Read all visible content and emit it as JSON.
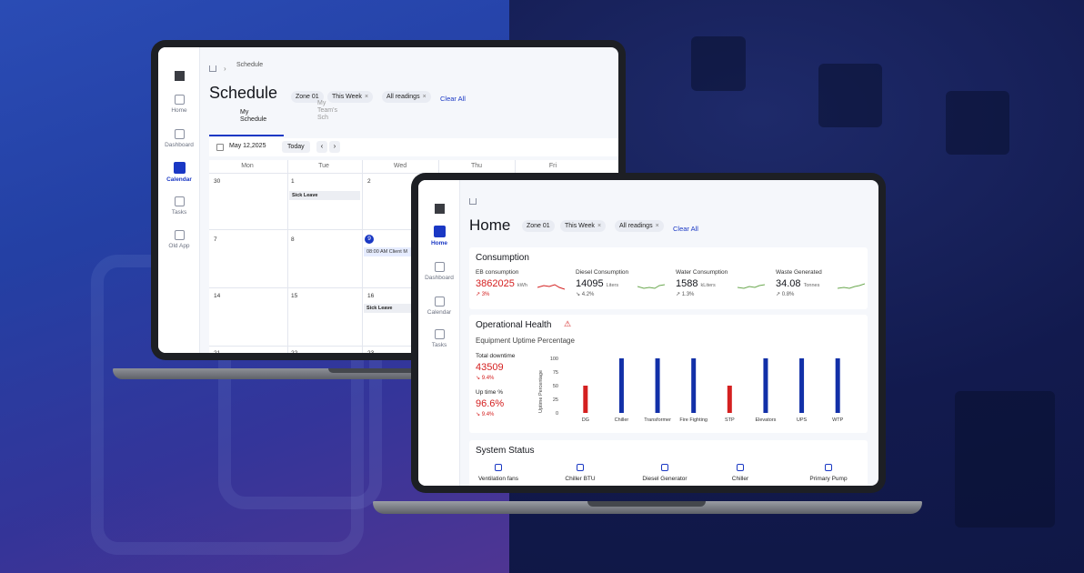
{
  "schedule_app": {
    "breadcrumb": "Schedule",
    "title": "Schedule",
    "filters": [
      {
        "label": "Zone 01"
      },
      {
        "label": "This Week"
      },
      {
        "label": "All readings"
      }
    ],
    "clear_all": "Clear All",
    "tabs": [
      {
        "label": "My Schedule",
        "active": true
      },
      {
        "label": "My Team's Sch",
        "active": false
      }
    ],
    "date": "May 12,2025",
    "today_label": "Today",
    "nav": [
      {
        "label": "Home",
        "icon": "home-icon"
      },
      {
        "label": "Dashboard",
        "icon": "dashboard-icon"
      },
      {
        "label": "Calendar",
        "icon": "calendar-icon",
        "active": true
      },
      {
        "label": "Tasks",
        "icon": "tasks-icon"
      },
      {
        "label": "Old App",
        "icon": "old-app-icon"
      }
    ],
    "weekdays": [
      "Mon",
      "Tue",
      "Wed",
      "Thu",
      "Fri"
    ],
    "days": {
      "r1": [
        "30",
        "1",
        "2"
      ],
      "r2": [
        "7",
        "8",
        "9"
      ],
      "r3": [
        "14",
        "15",
        "16"
      ],
      "r4": [
        "21",
        "22",
        "23"
      ]
    },
    "events": {
      "sick1": "Sick Leave",
      "client": "08:00 AM  Client M",
      "sick2": "Sick Leave"
    }
  },
  "home_app": {
    "title": "Home",
    "filters": [
      {
        "label": "Zone 01"
      },
      {
        "label": "This Week"
      },
      {
        "label": "All readings"
      }
    ],
    "clear_all": "Clear All",
    "nav": [
      {
        "label": "Home",
        "icon": "home-icon",
        "active": true
      },
      {
        "label": "Dashboard",
        "icon": "dashboard-icon"
      },
      {
        "label": "Calendar",
        "icon": "calendar-icon"
      },
      {
        "label": "Tasks",
        "icon": "tasks-icon"
      }
    ],
    "consumption": {
      "title": "Consumption",
      "metrics": [
        {
          "label": "EB consumption",
          "value": "3862025",
          "unit": "kWh",
          "delta": "3%",
          "trend": "up",
          "color": "#d42020"
        },
        {
          "label": "Diesel Consumption",
          "value": "14095",
          "unit": "Liters",
          "delta": "4.2%",
          "trend": "down",
          "color": "#6aa84f"
        },
        {
          "label": "Water Consumption",
          "value": "1588",
          "unit": "kLiters",
          "delta": "1.3%",
          "trend": "up",
          "color": "#6aa84f"
        },
        {
          "label": "Waste Generated",
          "value": "34.08",
          "unit": "Tonnes",
          "delta": "0.8%",
          "trend": "up",
          "color": "#6aa84f"
        }
      ]
    },
    "operational": {
      "title": "Operational Health",
      "subtitle": "Equipment Uptime Percentage",
      "downtime_label": "Total downtime",
      "downtime_value": "43509",
      "downtime_delta": "9.4%",
      "uptime_label": "Up time %",
      "uptime_value": "96.6%",
      "uptime_delta": "9.4%"
    },
    "system_status": {
      "title": "System Status",
      "items": [
        {
          "label": "Ventilation fans",
          "icon": "fan-icon"
        },
        {
          "label": "Chiller BTU",
          "icon": "chiller-btu-icon"
        },
        {
          "label": "Diesel Generator",
          "icon": "generator-icon"
        },
        {
          "label": "Chiller",
          "icon": "chiller-icon"
        },
        {
          "label": "Primary Pump",
          "icon": "pump-icon"
        }
      ]
    }
  },
  "chart_data": {
    "type": "bar",
    "title": "Equipment Uptime Percentage",
    "ylabel": "Uptime Percentage",
    "xlabel": "",
    "ylim": [
      0,
      100
    ],
    "yticks": [
      0,
      25,
      50,
      75,
      100
    ],
    "categories": [
      "DG",
      "Chiller",
      "Transformer",
      "Fire Fighting",
      "STP",
      "Elevators",
      "UPS",
      "WTP"
    ],
    "values": [
      50,
      100,
      100,
      100,
      50,
      100,
      100,
      100
    ],
    "colors": [
      "#d42020",
      "#1230a8",
      "#1230a8",
      "#1230a8",
      "#d42020",
      "#1230a8",
      "#1230a8",
      "#1230a8"
    ]
  }
}
